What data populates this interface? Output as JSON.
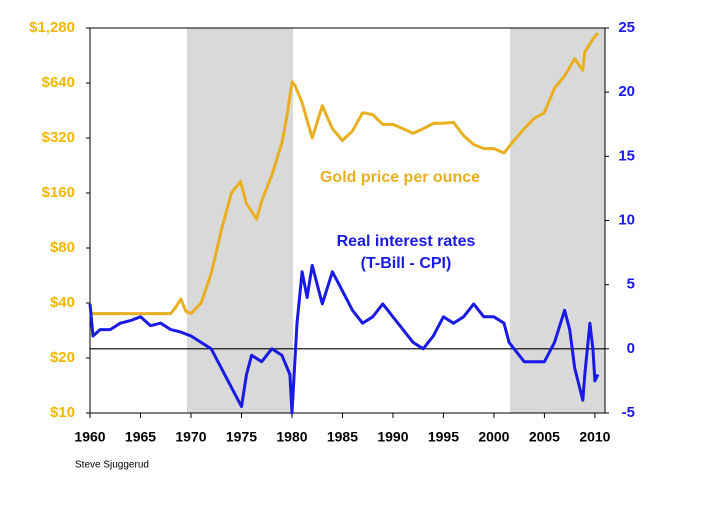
{
  "chart_data": {
    "type": "line",
    "xlim": [
      1960,
      2011
    ],
    "xticks": [
      1960,
      1965,
      1970,
      1975,
      1980,
      1985,
      1990,
      1995,
      2000,
      2005,
      2010
    ],
    "ylim": [
      10,
      1280
    ],
    "ylog": true,
    "yticks": [
      {
        "value": 10,
        "label": "$10"
      },
      {
        "value": 20,
        "label": "$20"
      },
      {
        "value": 40,
        "label": "$40"
      },
      {
        "value": 80,
        "label": "$80"
      },
      {
        "value": 160,
        "label": "$160"
      },
      {
        "value": 320,
        "label": "$320"
      },
      {
        "value": 640,
        "label": "$640"
      },
      {
        "value": 1280,
        "label": "$1,280"
      }
    ],
    "y2lim": [
      -5,
      25
    ],
    "y2ticks": [
      -5,
      0,
      5,
      10,
      15,
      20,
      25
    ],
    "y_color": "#f2b705",
    "y2_color": "#1a1ae6",
    "zero_line": true,
    "shaded_regions": [
      [
        1969.6,
        1980.1
      ],
      [
        2001.6,
        2011
      ]
    ],
    "series": [
      {
        "name": "Gold price per ounce",
        "color": "#e8b020",
        "x": [
          1960,
          1968,
          1968.5,
          1969,
          1969.5,
          1970,
          1971,
          1972,
          1973,
          1974,
          1974.9,
          1975.5,
          1976.5,
          1977,
          1978,
          1979,
          1979.5,
          1980,
          1980.3,
          1981,
          1982,
          1983,
          1984,
          1985,
          1986,
          1987,
          1988,
          1989,
          1990,
          1991,
          1992,
          1993,
          1994,
          1995,
          1996,
          1997,
          1998,
          1999,
          2000,
          2001,
          2002,
          2003,
          2004,
          2005,
          2006,
          2007,
          2008,
          2008.8,
          2009,
          2010,
          2010.3
        ],
        "values": [
          35,
          35,
          38,
          42,
          36,
          35,
          40,
          58,
          100,
          160,
          185,
          140,
          115,
          145,
          200,
          300,
          420,
          650,
          620,
          500,
          320,
          480,
          360,
          310,
          350,
          440,
          430,
          380,
          380,
          360,
          340,
          360,
          385,
          385,
          390,
          330,
          295,
          280,
          280,
          265,
          310,
          360,
          410,
          440,
          600,
          700,
          870,
          750,
          950,
          1150,
          1200
        ]
      },
      {
        "name": "Real interest rates",
        "color": "#1a1ae6",
        "axis": "y2",
        "x": [
          1960,
          1960.3,
          1961,
          1962,
          1963,
          1964,
          1965,
          1966,
          1967,
          1968,
          1969,
          1970,
          1971,
          1972,
          1973,
          1974,
          1975,
          1975.5,
          1976,
          1977,
          1978,
          1979,
          1979.8,
          1980,
          1980.5,
          1981,
          1981.5,
          1982,
          1983,
          1984,
          1985,
          1986,
          1987,
          1988,
          1989,
          1990,
          1991,
          1992,
          1993,
          1994,
          1995,
          1996,
          1997,
          1998,
          1999,
          2000,
          2001,
          2001.5,
          2002,
          2003,
          2004,
          2005,
          2006,
          2007,
          2007.5,
          2008,
          2008.8,
          2009,
          2009.5,
          2009.8,
          2010,
          2010.3
        ],
        "values": [
          3.5,
          1.0,
          1.5,
          1.5,
          2,
          2.2,
          2.5,
          1.8,
          2,
          1.5,
          1.3,
          1.0,
          0.5,
          0,
          -1.5,
          -3,
          -4.5,
          -2,
          -0.5,
          -1,
          0,
          -0.5,
          -2,
          -5,
          2,
          6,
          4,
          6.5,
          3.5,
          6,
          4.5,
          3,
          2,
          2.5,
          3.5,
          2.5,
          1.5,
          0.5,
          0,
          1,
          2.5,
          2,
          2.5,
          3.5,
          2.5,
          2.5,
          2,
          0.5,
          0,
          -1,
          -1,
          -1,
          0.5,
          3,
          1.5,
          -1.5,
          -4,
          -2,
          2,
          0,
          -2.5,
          -2
        ]
      }
    ],
    "annotations": [
      "(T-Bill - CPI)"
    ],
    "source": "Steve Sjuggerud"
  }
}
